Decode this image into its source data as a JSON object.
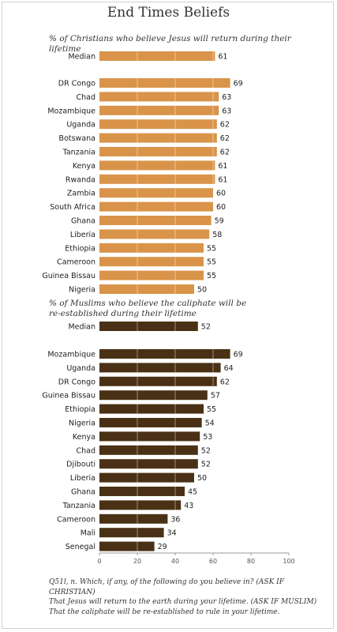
{
  "page": {
    "title": "End Times Beliefs",
    "subtitle_christians": "% of Christians who believe Jesus will return during their lifetime",
    "subtitle_muslims_line1": "% of Muslims who believe the caliphate will be",
    "subtitle_muslims_line2": "re-established during their lifetime",
    "footnote_line1": "Q51l, n. Which, if any, of the following do you believe in? (ASK IF CHRISTIAN)",
    "footnote_line2": "That Jesus will return to the earth during your lifetime. (ASK IF MUSLIM)",
    "footnote_line3": "That the caliphate will be re-established to rule in your lifetime."
  },
  "colors": {
    "christian": "#D9944A",
    "muslim": "#4A3115",
    "divider": "#ffffff",
    "axis": "#999999"
  },
  "chart_data": [
    {
      "type": "bar",
      "orientation": "horizontal",
      "subtitle": "% of Christians who believe Jesus will return during their lifetime",
      "median": {
        "label": "Median",
        "value": 61
      },
      "categories": [
        "DR Congo",
        "Chad",
        "Mozambique",
        "Uganda",
        "Botswana",
        "Tanzania",
        "Kenya",
        "Rwanda",
        "Zambia",
        "South Africa",
        "Ghana",
        "Liberia",
        "Ethiopia",
        "Cameroon",
        "Guinea Bissau",
        "Nigeria"
      ],
      "values": [
        69,
        63,
        63,
        62,
        62,
        62,
        61,
        61,
        60,
        60,
        59,
        58,
        55,
        55,
        55,
        50
      ],
      "xlim": [
        0,
        100
      ]
    },
    {
      "type": "bar",
      "orientation": "horizontal",
      "subtitle": "% of Muslims who believe the caliphate will be re-established during their lifetime",
      "median": {
        "label": "Median",
        "value": 52
      },
      "categories": [
        "Mozambique",
        "Uganda",
        "DR Congo",
        "Guinea Bissau",
        "Ethiopia",
        "Nigeria",
        "Kenya",
        "Chad",
        "Djibouti",
        "Liberia",
        "Ghana",
        "Tanzania",
        "Cameroon",
        "Mali",
        "Senegal"
      ],
      "values": [
        69,
        64,
        62,
        57,
        55,
        54,
        53,
        52,
        52,
        50,
        45,
        43,
        36,
        34,
        29
      ],
      "xlim": [
        0,
        100
      ],
      "xticks": [
        0,
        20,
        40,
        60,
        80,
        100
      ]
    }
  ]
}
